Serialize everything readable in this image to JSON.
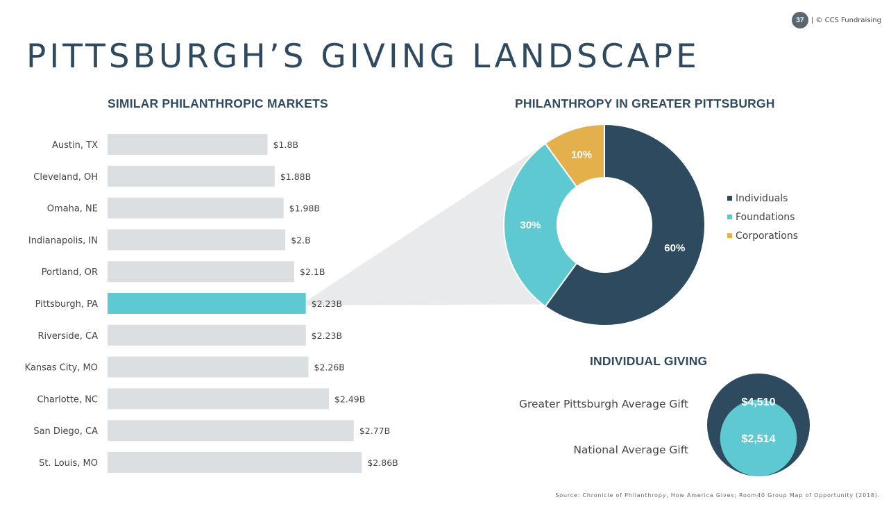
{
  "header": {
    "page_number": "37",
    "copyright": "| © CCS Fundraising"
  },
  "title": "PITTSBURGH’S GIVING LANDSCAPE",
  "chart_data": [
    {
      "type": "bar",
      "orientation": "horizontal",
      "title": "SIMILAR PHILANTHROPIC MARKETS",
      "categories": [
        "Austin, TX",
        "Cleveland, OH",
        "Omaha, NE",
        "Indianapolis, IN",
        "Portland, OR",
        "Pittsburgh, PA",
        "Riverside, CA",
        "Kansas City, MO",
        "Charlotte, NC",
        "San Diego, CA",
        "St. Louis, MO"
      ],
      "values": [
        1.8,
        1.88,
        1.98,
        2.0,
        2.1,
        2.23,
        2.23,
        2.26,
        2.49,
        2.77,
        2.86
      ],
      "value_labels": [
        "$1.8B",
        "$1.88B",
        "$1.98B",
        "$2.B",
        "$2.1B",
        "$2.23B",
        "$2.23B",
        "$2.26B",
        "$2.49B",
        "$2.77B",
        "$2.86B"
      ],
      "highlight": "Pittsburgh, PA",
      "colors": {
        "bar": "#dcdfe1",
        "highlight": "#5ec9d0"
      }
    },
    {
      "type": "pie",
      "donut": true,
      "title": "PHILANTHROPY IN GREATER PITTSBURGH",
      "slices": [
        {
          "name": "Individuals",
          "value": 60,
          "label": "60%",
          "color": "#2e4a5e"
        },
        {
          "name": "Foundations",
          "value": 30,
          "label": "30%",
          "color": "#5ec9d0"
        },
        {
          "name": "Corporations",
          "value": 10,
          "label": "10%",
          "color": "#e3b04b"
        }
      ],
      "legend_position": "right"
    },
    {
      "type": "bubble",
      "title": "INDIVIDUAL GIVING",
      "items": [
        {
          "name": "Greater Pittsburgh Average Gift",
          "value": 4510,
          "label": "$4,510",
          "color": "#2e4a5e"
        },
        {
          "name": "National Average Gift",
          "value": 2514,
          "label": "$2,514",
          "color": "#5ec9d0"
        }
      ]
    }
  ],
  "connector_color": "#e8eaec",
  "source": "Source: Chronicle of Philanthropy, How America Gives; Room40 Group Map of Opportunity (2018)."
}
